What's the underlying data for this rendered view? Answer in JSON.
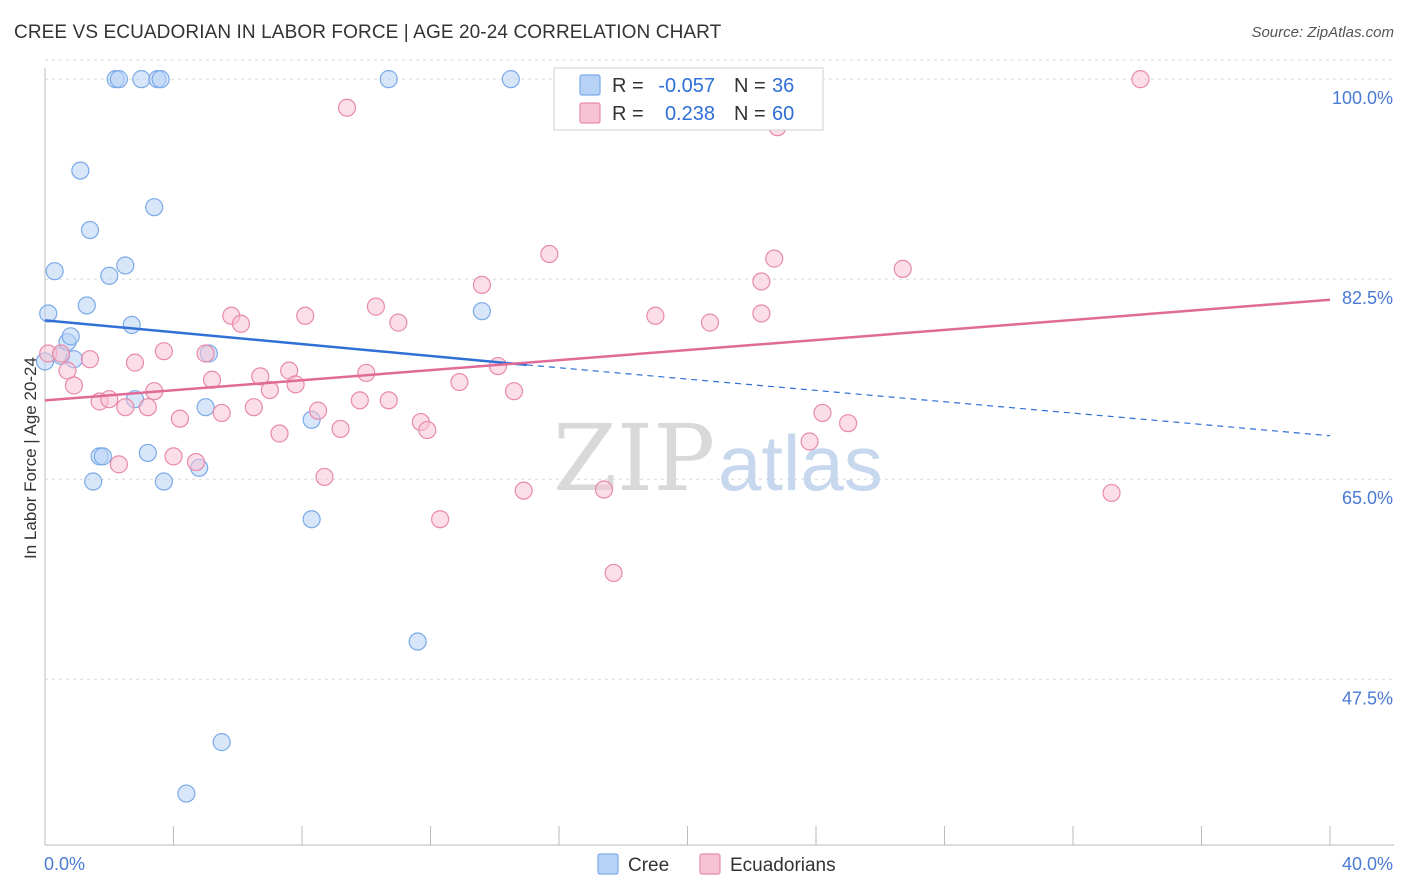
{
  "title": "CREE VS ECUADORIAN IN LABOR FORCE | AGE 20-24 CORRELATION CHART",
  "source": "Source: ZipAtlas.com",
  "chart_data": {
    "type": "scatter",
    "title": "CREE VS ECUADORIAN IN LABOR FORCE | AGE 20-24 CORRELATION CHART",
    "xlabel": "",
    "ylabel": "In Labor Force | Age 20-24",
    "xlim": [
      0,
      40
    ],
    "ylim": [
      33,
      101.5
    ],
    "x_tick_labels": [
      "0.0%",
      "40.0%"
    ],
    "y_ticks": [
      47.5,
      65.0,
      82.5,
      100.0
    ],
    "y_tick_labels": [
      "47.5%",
      "65.0%",
      "82.5%",
      "100.0%"
    ],
    "grid": true,
    "legend": [
      {
        "name": "Cree",
        "r_label": "R =",
        "r": "-0.057",
        "n_label": "N =",
        "n": "36",
        "color": "#7aaae8",
        "fill": "#b8d2f5"
      },
      {
        "name": "Ecuadorians",
        "r_label": "R =",
        "r": "0.238",
        "n_label": "N =",
        "n": "60",
        "color": "#e88aaa",
        "fill": "#f7c3d4"
      }
    ],
    "series": [
      {
        "name": "Cree",
        "color": "#7aaae8",
        "points": [
          [
            0.0,
            75.3
          ],
          [
            0.1,
            79.5
          ],
          [
            0.3,
            83.2
          ],
          [
            0.5,
            75.8
          ],
          [
            0.7,
            77.0
          ],
          [
            0.8,
            77.5
          ],
          [
            1.1,
            92.0
          ],
          [
            1.3,
            80.2
          ],
          [
            1.4,
            86.8
          ],
          [
            1.5,
            64.8
          ],
          [
            1.7,
            67.0
          ],
          [
            1.8,
            67.0
          ],
          [
            2.0,
            82.8
          ],
          [
            2.2,
            100.0
          ],
          [
            2.3,
            100.0
          ],
          [
            2.5,
            83.7
          ],
          [
            2.7,
            78.5
          ],
          [
            2.8,
            72.0
          ],
          [
            3.0,
            100.0
          ],
          [
            3.2,
            67.3
          ],
          [
            3.4,
            88.8
          ],
          [
            3.5,
            100.0
          ],
          [
            3.6,
            100.0
          ],
          [
            3.7,
            64.8
          ],
          [
            4.4,
            37.5
          ],
          [
            4.8,
            66.0
          ],
          [
            5.0,
            71.3
          ],
          [
            5.1,
            76.0
          ],
          [
            5.5,
            42.0
          ],
          [
            8.3,
            70.2
          ],
          [
            8.3,
            61.5
          ],
          [
            10.7,
            100.0
          ],
          [
            11.6,
            50.8
          ],
          [
            13.6,
            79.7
          ],
          [
            14.5,
            100.0
          ],
          [
            0.9,
            75.5
          ]
        ]
      },
      {
        "name": "Ecuadorians",
        "color": "#e88aaa",
        "points": [
          [
            0.1,
            76.0
          ],
          [
            0.5,
            76.0
          ],
          [
            0.7,
            74.5
          ],
          [
            0.9,
            73.2
          ],
          [
            1.4,
            75.5
          ],
          [
            1.7,
            71.8
          ],
          [
            2.0,
            72.0
          ],
          [
            2.3,
            66.3
          ],
          [
            2.5,
            71.3
          ],
          [
            2.8,
            75.2
          ],
          [
            3.2,
            71.3
          ],
          [
            3.4,
            72.7
          ],
          [
            3.7,
            76.2
          ],
          [
            4.0,
            67.0
          ],
          [
            4.2,
            70.3
          ],
          [
            4.7,
            66.5
          ],
          [
            5.0,
            76.0
          ],
          [
            5.2,
            73.7
          ],
          [
            5.5,
            70.8
          ],
          [
            5.8,
            79.3
          ],
          [
            6.1,
            78.6
          ],
          [
            6.5,
            71.3
          ],
          [
            6.7,
            74.0
          ],
          [
            7.0,
            72.8
          ],
          [
            7.3,
            69.0
          ],
          [
            7.6,
            74.5
          ],
          [
            7.8,
            73.3
          ],
          [
            8.1,
            79.3
          ],
          [
            8.5,
            71.0
          ],
          [
            8.7,
            65.2
          ],
          [
            9.2,
            69.4
          ],
          [
            9.4,
            97.5
          ],
          [
            9.8,
            71.9
          ],
          [
            10.0,
            74.3
          ],
          [
            10.3,
            80.1
          ],
          [
            10.7,
            71.9
          ],
          [
            11.0,
            78.7
          ],
          [
            11.7,
            70.0
          ],
          [
            11.9,
            69.3
          ],
          [
            12.3,
            61.5
          ],
          [
            12.9,
            73.5
          ],
          [
            13.6,
            82.0
          ],
          [
            14.1,
            74.9
          ],
          [
            14.6,
            72.7
          ],
          [
            14.9,
            64.0
          ],
          [
            15.7,
            84.7
          ],
          [
            17.4,
            64.1
          ],
          [
            17.7,
            56.8
          ],
          [
            19.0,
            79.3
          ],
          [
            20.7,
            78.7
          ],
          [
            22.3,
            82.3
          ],
          [
            22.3,
            79.5
          ],
          [
            22.7,
            84.3
          ],
          [
            22.8,
            95.8
          ],
          [
            23.8,
            68.3
          ],
          [
            24.2,
            70.8
          ],
          [
            25.0,
            69.9
          ],
          [
            26.7,
            83.4
          ],
          [
            33.2,
            63.8
          ],
          [
            34.1,
            100.0
          ]
        ]
      }
    ],
    "trend_lines": [
      {
        "name": "Cree",
        "color": "#2f6fd6",
        "x0": 0,
        "y0": 78.9,
        "x1": 15,
        "y1": 75.0,
        "dash_x1": 40,
        "dash_y1": 68.8
      },
      {
        "name": "Ecuadorians",
        "color": "#e06b96",
        "x0": 0,
        "y0": 71.9,
        "x1": 40,
        "y1": 80.7
      }
    ]
  },
  "watermark": {
    "part1": "ZIP",
    "part2": "atlas"
  }
}
